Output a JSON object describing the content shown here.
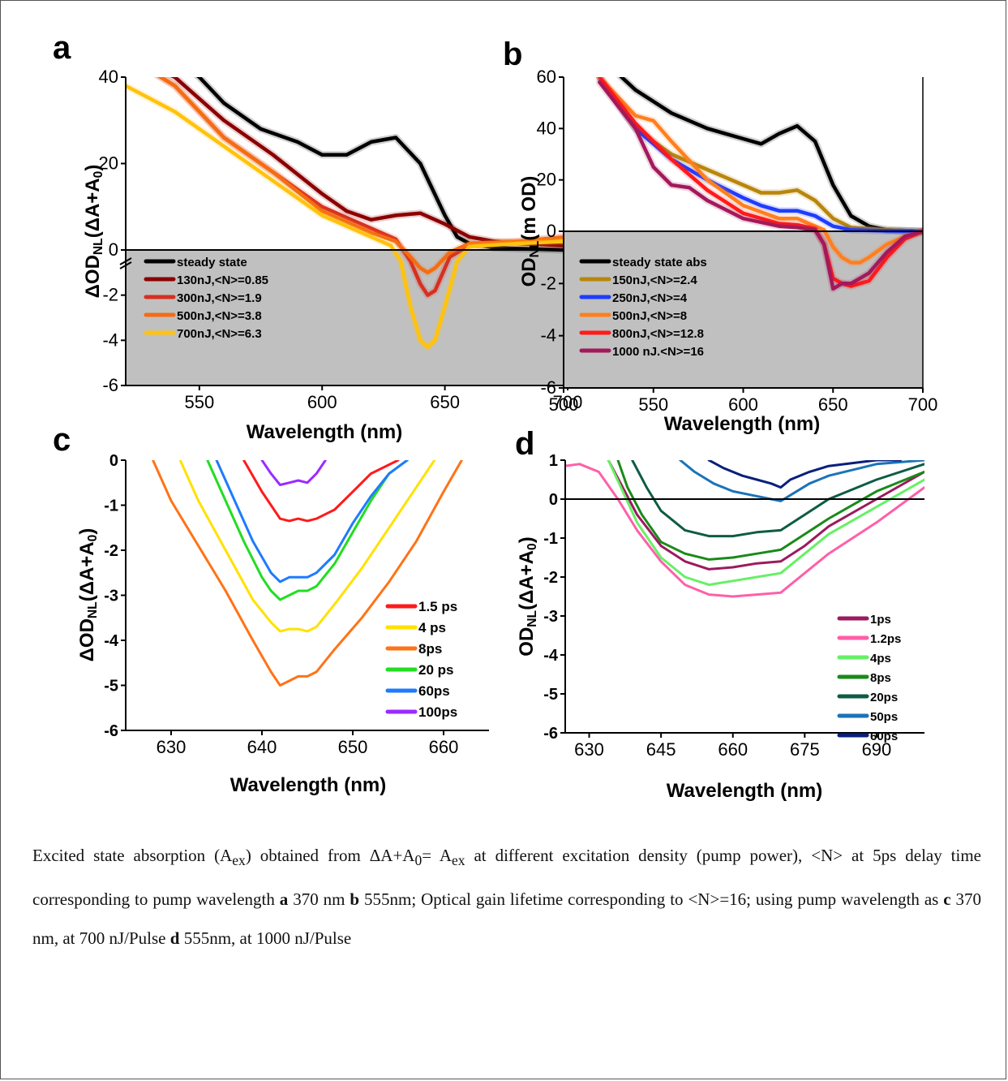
{
  "chart_data": [
    {
      "panel": "a",
      "type": "line",
      "xlabel": "Wavelength (nm)",
      "ylabel": "ΔOD_NL(ΔA+A_0)",
      "xlim": [
        520,
        700
      ],
      "ylim_upper": [
        0,
        40
      ],
      "ylim_lower": [
        -6,
        0
      ],
      "axis_break": true,
      "xticks": [
        550,
        600,
        650,
        700
      ],
      "yticks_upper": [
        0,
        20,
        40
      ],
      "yticks_lower": [
        -2,
        -4,
        -6
      ],
      "lower_region_shaded": true,
      "legend_position": "bottom-left",
      "series": [
        {
          "name": "steady state",
          "color": "#000000",
          "x": [
            530,
            550,
            560,
            575,
            590,
            600,
            610,
            620,
            630,
            640,
            650,
            655,
            660,
            670,
            680,
            700
          ],
          "y": [
            48,
            40,
            34,
            28,
            25,
            22,
            22,
            25,
            26,
            20,
            8,
            3,
            1.5,
            0.5,
            0.3,
            0
          ]
        },
        {
          "name": "130nJ,<N>=0.85",
          "color": "#8b0000",
          "x": [
            520,
            540,
            560,
            580,
            600,
            610,
            620,
            630,
            640,
            650,
            660,
            670,
            680,
            700
          ],
          "y": [
            45,
            40,
            30,
            22,
            13,
            9,
            7,
            8,
            8.5,
            6,
            3,
            2,
            1.5,
            1
          ]
        },
        {
          "name": "300nJ,<N>=1.9",
          "color": "#d7301f",
          "x": [
            520,
            540,
            560,
            580,
            600,
            620,
            630,
            636,
            640,
            643,
            646,
            652,
            660,
            680,
            700
          ],
          "y": [
            45,
            38,
            26,
            18,
            10,
            5,
            2.5,
            -0.5,
            -1.5,
            -2.0,
            -1.8,
            -0.3,
            1,
            2,
            3
          ]
        },
        {
          "name": "500nJ,<N>=3.8",
          "color": "#f46d13",
          "x": [
            520,
            540,
            560,
            580,
            600,
            620,
            630,
            636,
            640,
            643,
            646,
            652,
            660,
            680,
            700
          ],
          "y": [
            45,
            38,
            26,
            18,
            9,
            4,
            2,
            -0.3,
            -0.8,
            -1.0,
            -0.8,
            -0.1,
            1.5,
            2,
            3
          ]
        },
        {
          "name": "700nJ,<N>=6.3",
          "color": "#ffc20e",
          "x": [
            520,
            540,
            560,
            580,
            600,
            620,
            628,
            632,
            636,
            640,
            643,
            646,
            650,
            655,
            660,
            680,
            700
          ],
          "y": [
            38,
            32,
            24,
            16,
            8,
            3,
            1,
            -0.5,
            -2.5,
            -4.0,
            -4.3,
            -4.0,
            -2.5,
            -0.5,
            0.8,
            1.5,
            2
          ]
        }
      ]
    },
    {
      "panel": "b",
      "type": "line",
      "xlabel": "Wavelength (nm)",
      "ylabel": "OD_NL(m OD)",
      "xlim": [
        500,
        700
      ],
      "ylim_upper": [
        0,
        60
      ],
      "ylim_lower": [
        -6,
        0
      ],
      "xticks": [
        500,
        550,
        600,
        650,
        700
      ],
      "yticks_upper": [
        0,
        20,
        40,
        60
      ],
      "yticks_lower": [
        -2,
        -4,
        -6
      ],
      "lower_region_shaded": true,
      "legend_position": "bottom-left",
      "series": [
        {
          "name": "steady state abs",
          "color": "#000000",
          "x": [
            520,
            540,
            560,
            580,
            600,
            610,
            620,
            630,
            640,
            650,
            660,
            670,
            680,
            700
          ],
          "y": [
            68,
            55,
            46,
            40,
            36,
            34,
            38,
            41,
            35,
            18,
            6,
            2,
            0.5,
            0
          ]
        },
        {
          "name": "150nJ,<N>=2.4",
          "color": "#b8860b",
          "x": [
            520,
            540,
            560,
            580,
            600,
            610,
            620,
            630,
            640,
            650,
            660,
            680,
            700
          ],
          "y": [
            60,
            40,
            30,
            24,
            18,
            15,
            15,
            16,
            12,
            5,
            1.5,
            0.5,
            0
          ]
        },
        {
          "name": "250nJ,<N>=4",
          "color": "#1f3cff",
          "x": [
            520,
            540,
            560,
            580,
            600,
            610,
            620,
            630,
            640,
            650,
            660,
            680,
            700
          ],
          "y": [
            60,
            40,
            28,
            20,
            13,
            10,
            8,
            8,
            6,
            2,
            0.5,
            0.2,
            0
          ]
        },
        {
          "name": "500nJ,<N>=8",
          "color": "#ff7f1f",
          "x": [
            520,
            540,
            550,
            560,
            580,
            600,
            620,
            630,
            640,
            645,
            650,
            655,
            660,
            665,
            670,
            680,
            690,
            700
          ],
          "y": [
            60,
            45,
            43,
            35,
            20,
            10,
            5,
            5,
            2,
            0.5,
            -0.6,
            -1.0,
            -1.2,
            -1.2,
            -1.0,
            -0.5,
            -0.2,
            0
          ]
        },
        {
          "name": "800nJ,<N>=12.8",
          "color": "#ff1a1a",
          "x": [
            520,
            540,
            550,
            560,
            580,
            600,
            620,
            630,
            640,
            645,
            650,
            655,
            660,
            665,
            670,
            680,
            690,
            700
          ],
          "y": [
            60,
            42,
            35,
            28,
            16,
            7,
            3,
            2.5,
            1,
            -0.5,
            -1.8,
            -2.0,
            -2.1,
            -2.0,
            -1.9,
            -1.0,
            -0.3,
            0
          ]
        },
        {
          "name": "1000 nJ.<N>=16",
          "color": "#a3195b",
          "x": [
            520,
            540,
            550,
            560,
            570,
            580,
            600,
            620,
            630,
            640,
            645,
            650,
            655,
            660,
            665,
            670,
            680,
            690,
            700
          ],
          "y": [
            58,
            40,
            25,
            18,
            17,
            12,
            5,
            2,
            1.5,
            0.5,
            -0.5,
            -2.2,
            -2.0,
            -2.0,
            -1.8,
            -1.6,
            -0.8,
            -0.2,
            0
          ]
        }
      ]
    },
    {
      "panel": "c",
      "type": "line",
      "xlabel": "Wavelength (nm)",
      "ylabel": "ΔOD_NL(ΔA+A_0)",
      "xlim": [
        625,
        665
      ],
      "ylim": [
        -6,
        0
      ],
      "xticks": [
        630,
        640,
        650,
        660
      ],
      "yticks": [
        0,
        -1,
        -2,
        -3,
        -4,
        -5,
        -6
      ],
      "legend_position": "right",
      "series": [
        {
          "name": "1.5 ps",
          "color": "#ff1a1a",
          "x": [
            638,
            640,
            642,
            643,
            644,
            645,
            646,
            648,
            650,
            652,
            655
          ],
          "y": [
            0,
            -0.7,
            -1.3,
            -1.35,
            -1.3,
            -1.35,
            -1.3,
            -1.1,
            -0.7,
            -0.3,
            0
          ]
        },
        {
          "name": "4 ps",
          "color": "#ffe100",
          "x": [
            631,
            633,
            636,
            639,
            641,
            642,
            643,
            644,
            645,
            646,
            648,
            651,
            654,
            657,
            659
          ],
          "y": [
            0,
            -0.9,
            -2.0,
            -3.1,
            -3.6,
            -3.8,
            -3.75,
            -3.75,
            -3.8,
            -3.7,
            -3.2,
            -2.4,
            -1.5,
            -0.6,
            0
          ]
        },
        {
          "name": "8ps",
          "color": "#ff7316",
          "x": [
            628,
            630,
            633,
            636,
            639,
            641,
            642,
            643,
            644,
            645,
            646,
            648,
            651,
            654,
            657,
            660,
            662
          ],
          "y": [
            0,
            -0.9,
            -1.9,
            -2.9,
            -4.0,
            -4.7,
            -5.0,
            -4.9,
            -4.8,
            -4.8,
            -4.7,
            -4.2,
            -3.5,
            -2.7,
            -1.8,
            -0.7,
            0
          ]
        },
        {
          "name": "20 ps",
          "color": "#22dd22",
          "x": [
            634,
            636,
            638,
            640,
            641,
            642,
            643,
            644,
            645,
            646,
            648,
            650,
            652,
            654,
            656
          ],
          "y": [
            0,
            -0.9,
            -1.8,
            -2.6,
            -2.9,
            -3.1,
            -3.0,
            -2.9,
            -2.9,
            -2.8,
            -2.3,
            -1.6,
            -0.9,
            -0.3,
            0
          ]
        },
        {
          "name": "60ps",
          "color": "#1e7bff",
          "x": [
            635,
            637,
            639,
            641,
            642,
            643,
            644,
            645,
            646,
            648,
            650,
            652,
            654,
            656
          ],
          "y": [
            0,
            -0.9,
            -1.8,
            -2.5,
            -2.7,
            -2.6,
            -2.6,
            -2.6,
            -2.5,
            -2.1,
            -1.4,
            -0.8,
            -0.3,
            0
          ]
        },
        {
          "name": "100ps",
          "color": "#9b2bff",
          "x": [
            640,
            641,
            642,
            643,
            644,
            645,
            646,
            647
          ],
          "y": [
            0,
            -0.3,
            -0.55,
            -0.5,
            -0.45,
            -0.5,
            -0.3,
            0
          ]
        }
      ]
    },
    {
      "panel": "d",
      "type": "line",
      "xlabel": "Wavelength (nm)",
      "ylabel": "OD_NL(ΔA+A_0)",
      "xlim": [
        625,
        700
      ],
      "ylim": [
        -6,
        1
      ],
      "xticks": [
        630,
        645,
        660,
        675,
        690
      ],
      "yticks": [
        1,
        0,
        -1,
        -2,
        -3,
        -4,
        -5,
        -6
      ],
      "zero_line": true,
      "legend_position": "bottom-right",
      "series": [
        {
          "name": "1ps",
          "color": "#9b1b5e",
          "x": [
            634,
            637,
            640,
            645,
            650,
            655,
            660,
            665,
            670,
            675,
            680,
            690,
            700
          ],
          "y": [
            1,
            0.3,
            -0.4,
            -1.2,
            -1.6,
            -1.8,
            -1.75,
            -1.65,
            -1.6,
            -1.2,
            -0.7,
            0.0,
            0.7
          ]
        },
        {
          "name": "1.2ps",
          "color": "#ff5fa8",
          "x": [
            625,
            628,
            632,
            636,
            640,
            645,
            650,
            655,
            660,
            665,
            670,
            675,
            680,
            690,
            700
          ],
          "y": [
            0.85,
            0.9,
            0.7,
            0.0,
            -0.8,
            -1.6,
            -2.2,
            -2.45,
            -2.5,
            -2.45,
            -2.4,
            -1.9,
            -1.4,
            -0.6,
            0.3
          ]
        },
        {
          "name": "4ps",
          "color": "#66f066",
          "x": [
            634,
            637,
            640,
            645,
            650,
            655,
            660,
            665,
            670,
            675,
            680,
            690,
            700
          ],
          "y": [
            1,
            0.2,
            -0.6,
            -1.5,
            -2.0,
            -2.2,
            -2.1,
            -2.0,
            -1.9,
            -1.4,
            -0.9,
            -0.2,
            0.5
          ]
        },
        {
          "name": "8ps",
          "color": "#1a8a1a",
          "x": [
            636,
            638,
            641,
            645,
            650,
            655,
            660,
            665,
            670,
            675,
            680,
            690,
            700
          ],
          "y": [
            1,
            0.3,
            -0.4,
            -1.1,
            -1.4,
            -1.55,
            -1.5,
            -1.4,
            -1.3,
            -0.9,
            -0.5,
            0.2,
            0.7
          ]
        },
        {
          "name": "20ps",
          "color": "#0e5c45",
          "x": [
            639,
            642,
            645,
            650,
            655,
            660,
            665,
            670,
            675,
            680,
            690,
            700
          ],
          "y": [
            1,
            0.3,
            -0.3,
            -0.8,
            -0.95,
            -0.95,
            -0.85,
            -0.8,
            -0.4,
            0.0,
            0.5,
            0.9
          ]
        },
        {
          "name": "50ps",
          "color": "#1b73b8",
          "x": [
            649,
            652,
            656,
            660,
            664,
            668,
            670,
            672,
            676,
            680,
            690,
            700
          ],
          "y": [
            1,
            0.7,
            0.4,
            0.2,
            0.1,
            0.0,
            -0.05,
            0.1,
            0.4,
            0.6,
            0.9,
            1.0
          ]
        },
        {
          "name": "60ps",
          "color": "#0a1f7a",
          "x": [
            655,
            658,
            662,
            665,
            668,
            670,
            672,
            676,
            680,
            690,
            695
          ],
          "y": [
            1,
            0.8,
            0.6,
            0.5,
            0.4,
            0.3,
            0.5,
            0.7,
            0.85,
            1.0,
            1.0
          ]
        }
      ]
    }
  ],
  "caption": {
    "t1": "Excited state absorption (A",
    "s1": "ex",
    "t2": ") obtained from ΔA+A",
    "s2": "0",
    "t3": "= A",
    "s3": "ex",
    "t4": " at different excitation density (pump power), <N> at 5ps delay time corresponding to pump wavelength ",
    "b1": "a",
    "t5": " 370 nm ",
    "b2": "b",
    "t6": " 555nm; Optical gain lifetime corresponding to  <N>=16; using pump wavelength as ",
    "b3": "c",
    "t7": " 370 nm, at 700 nJ/Pulse  ",
    "b4": "d",
    "t8": " 555nm, at 1000 nJ/Pulse"
  }
}
